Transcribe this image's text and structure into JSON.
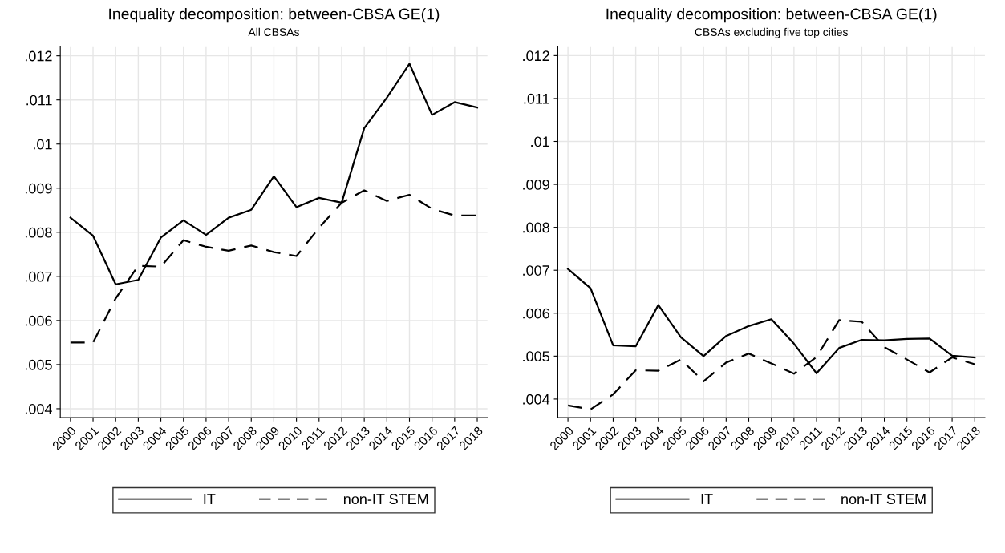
{
  "chart_data": [
    {
      "type": "line",
      "title": "Inequality decomposition: between-CBSA GE(1)",
      "subtitle": "All CBSAs",
      "categories": [
        "2000",
        "2001",
        "2002",
        "2003",
        "2004",
        "2005",
        "2006",
        "2007",
        "2008",
        "2009",
        "2010",
        "2011",
        "2012",
        "2013",
        "2014",
        "2015",
        "2016",
        "2017",
        "2018"
      ],
      "series": [
        {
          "name": "IT",
          "color": "#000000",
          "line_style": "solid",
          "values": [
            0.00833,
            0.00792,
            0.00682,
            0.00692,
            0.00788,
            0.00827,
            0.00794,
            0.00833,
            0.00851,
            0.00927,
            0.00857,
            0.00878,
            0.00867,
            0.01036,
            0.01105,
            0.01182,
            0.01066,
            0.01095,
            0.01083
          ]
        },
        {
          "name": "non-IT STEM",
          "color": "#000000",
          "line_style": "dashed",
          "values": [
            0.0055,
            0.0055,
            0.0065,
            0.00724,
            0.00722,
            0.00782,
            0.00767,
            0.00758,
            0.0077,
            0.00755,
            0.00746,
            0.0081,
            0.00867,
            0.00895,
            0.00871,
            0.00885,
            0.00853,
            0.00838,
            0.00838
          ]
        }
      ],
      "ylim": [
        0.0038,
        0.0122
      ],
      "yticks": [
        {
          "value": 0.004,
          "label": ".004"
        },
        {
          "value": 0.005,
          "label": ".005"
        },
        {
          "value": 0.006,
          "label": ".006"
        },
        {
          "value": 0.007,
          "label": ".007"
        },
        {
          "value": 0.008,
          "label": ".008"
        },
        {
          "value": 0.009,
          "label": ".009"
        },
        {
          "value": 0.01,
          "label": ".01"
        },
        {
          "value": 0.011,
          "label": ".011"
        },
        {
          "value": 0.012,
          "label": ".012"
        }
      ],
      "grid": true,
      "legend": "bottom",
      "marker": "none"
    },
    {
      "type": "line",
      "title": "Inequality decomposition: between-CBSA GE(1)",
      "subtitle": "CBSAs excluding five top cities",
      "categories": [
        "2000",
        "2001",
        "2002",
        "2003",
        "2004",
        "2005",
        "2006",
        "2007",
        "2008",
        "2009",
        "2010",
        "2011",
        "2012",
        "2013",
        "2014",
        "2015",
        "2016",
        "2017",
        "2018"
      ],
      "series": [
        {
          "name": "IT",
          "color": "#000000",
          "line_style": "solid",
          "values": [
            0.00703,
            0.00658,
            0.00525,
            0.00523,
            0.00619,
            0.00544,
            0.005,
            0.00547,
            0.0057,
            0.00586,
            0.00529,
            0.0046,
            0.00519,
            0.00538,
            0.00537,
            0.0054,
            0.00541,
            0.00501,
            0.00497
          ]
        },
        {
          "name": "non-IT STEM",
          "color": "#000000",
          "line_style": "dashed",
          "values": [
            0.00385,
            0.00376,
            0.00411,
            0.00467,
            0.00466,
            0.00492,
            0.00441,
            0.00485,
            0.00506,
            0.00483,
            0.00459,
            0.00498,
            0.00584,
            0.0058,
            0.00521,
            0.00492,
            0.00462,
            0.00497,
            0.00481
          ]
        }
      ],
      "ylim": [
        0.00357,
        0.0122
      ],
      "yticks": [
        {
          "value": 0.004,
          "label": ".004"
        },
        {
          "value": 0.005,
          "label": ".005"
        },
        {
          "value": 0.006,
          "label": ".006"
        },
        {
          "value": 0.007,
          "label": ".007"
        },
        {
          "value": 0.008,
          "label": ".008"
        },
        {
          "value": 0.009,
          "label": ".009"
        },
        {
          "value": 0.01,
          "label": ".01"
        },
        {
          "value": 0.011,
          "label": ".011"
        },
        {
          "value": 0.012,
          "label": ".012"
        }
      ],
      "grid": true,
      "legend": "bottom",
      "marker": "none"
    }
  ]
}
